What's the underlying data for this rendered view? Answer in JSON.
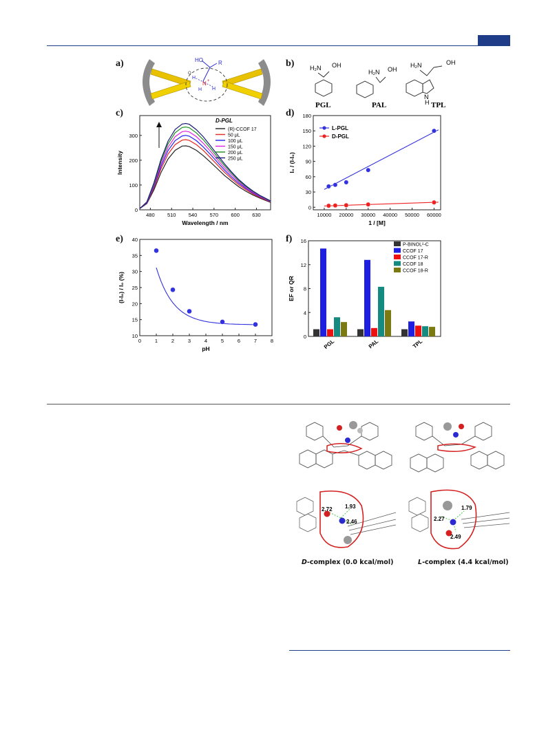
{
  "figure": {
    "panel_a_label": "a)",
    "panel_b_label": "b)",
    "panel_c_label": "c)",
    "panel_d_label": "d)",
    "panel_e_label": "e)",
    "panel_f_label": "f)",
    "scheme_a": {
      "ho": "HO",
      "r": "R",
      "h1": "H",
      "n": "N",
      "plus": "+",
      "h2": "H",
      "h3": "H",
      "o": "O"
    },
    "compounds": [
      {
        "name": "PGL",
        "amine": "H₂N",
        "hydroxyl": "OH"
      },
      {
        "name": "PAL",
        "amine": "H₂N",
        "hydroxyl": "OH"
      },
      {
        "name": "TPL",
        "amine": "H₂N",
        "hydroxyl": "OH",
        "nh": "N",
        "nh_h": "H"
      }
    ]
  },
  "chart_data": [
    {
      "panel": "c",
      "type": "line",
      "xlabel": "Wavelength / nm",
      "ylabel": "Intensity",
      "xlim": [
        465,
        650
      ],
      "ylim": [
        0,
        380
      ],
      "xticks": [
        480,
        510,
        540,
        570,
        600,
        630
      ],
      "yticks": [
        0,
        100,
        200,
        300
      ],
      "legend_title": "D-PGL",
      "legend_position": "top-right",
      "arrow": "up",
      "x": [
        465,
        475,
        485,
        495,
        505,
        515,
        525,
        530,
        535,
        545,
        555,
        565,
        575,
        585,
        595,
        605,
        615,
        625,
        635,
        650
      ],
      "series": [
        {
          "name": "(R)-CCOF 17",
          "color": "#222222",
          "peak": 258,
          "values": [
            5,
            25,
            80,
            150,
            205,
            240,
            257,
            258,
            255,
            240,
            218,
            192,
            165,
            138,
            115,
            93,
            75,
            60,
            47,
            30
          ]
        },
        {
          "name": "50 μL",
          "color": "#e8251f",
          "peak": 283,
          "values": [
            5,
            27,
            88,
            165,
            225,
            263,
            281,
            283,
            280,
            263,
            239,
            210,
            180,
            151,
            125,
            101,
            81,
            64,
            50,
            32
          ]
        },
        {
          "name": "100 μL",
          "color": "#2222ee",
          "peak": 300,
          "values": [
            5,
            28,
            93,
            175,
            239,
            279,
            298,
            300,
            297,
            279,
            253,
            223,
            191,
            160,
            132,
            107,
            86,
            68,
            53,
            33
          ]
        },
        {
          "name": "150 μL",
          "color": "#e020e0",
          "peak": 317,
          "values": [
            5,
            30,
            98,
            185,
            252,
            295,
            315,
            317,
            314,
            295,
            268,
            236,
            202,
            169,
            140,
            113,
            90,
            71,
            55,
            34
          ]
        },
        {
          "name": "200 μL",
          "color": "#1c8c1c",
          "peak": 334,
          "values": [
            5,
            31,
            103,
            195,
            266,
            311,
            332,
            334,
            331,
            310,
            282,
            248,
            212,
            178,
            147,
            118,
            94,
            74,
            57,
            35
          ]
        },
        {
          "name": "250 μL",
          "color": "#1a1a7a",
          "peak": 348,
          "values": [
            5,
            32,
            108,
            203,
            277,
            324,
            346,
            348,
            345,
            323,
            294,
            258,
            221,
            185,
            152,
            122,
            97,
            76,
            58,
            36
          ]
        }
      ]
    },
    {
      "panel": "d",
      "type": "scatter",
      "xlabel": "1 / [M]",
      "ylabel": "I₀ / (I-I₀)",
      "xlim": [
        5000,
        63000
      ],
      "ylim": [
        -5,
        180
      ],
      "xticks": [
        10000,
        20000,
        30000,
        40000,
        50000,
        60000
      ],
      "yticks": [
        0,
        30,
        60,
        90,
        120,
        150,
        180
      ],
      "legend_position": "top-left",
      "series": [
        {
          "name": "L-PGL",
          "color": "#3333dd",
          "x": [
            12000,
            15000,
            20000,
            30000,
            60000
          ],
          "values": [
            41,
            44,
            49,
            73,
            150
          ],
          "fit": [
            [
              10000,
              35
            ],
            [
              62000,
              152
            ]
          ]
        },
        {
          "name": "D-PGL",
          "color": "#ee2222",
          "x": [
            12000,
            15000,
            20000,
            30000,
            60000
          ],
          "values": [
            3,
            3.5,
            4,
            5.5,
            9.5
          ],
          "fit": [
            [
              10000,
              2.5
            ],
            [
              62000,
              10
            ]
          ]
        }
      ]
    },
    {
      "panel": "e",
      "type": "scatter",
      "xlabel": "pH",
      "ylabel": "(I-I₀) / I₀ (%)",
      "xlim": [
        0,
        8
      ],
      "ylim": [
        10,
        40
      ],
      "xticks": [
        0,
        1,
        2,
        3,
        4,
        5,
        6,
        7,
        8
      ],
      "yticks": [
        10,
        15,
        20,
        25,
        30,
        35,
        40
      ],
      "series": [
        {
          "name": "",
          "color": "#3333dd",
          "x": [
            1,
            2,
            3,
            5,
            7
          ],
          "values": [
            36.5,
            24.3,
            17.6,
            14.3,
            13.5
          ]
        }
      ]
    },
    {
      "panel": "f",
      "type": "bar",
      "xlabel": "",
      "ylabel": "EF or QR",
      "ylim": [
        0,
        16
      ],
      "yticks": [
        0,
        4,
        8,
        12,
        16
      ],
      "categories": [
        "PGL",
        "PAL",
        "TPL"
      ],
      "legend_position": "top-right",
      "series": [
        {
          "name": "P-BINOL²-C",
          "color": "#333333",
          "values": [
            1.2,
            1.2,
            1.2
          ]
        },
        {
          "name": "CCOF 17",
          "color": "#1f1fe0",
          "values": [
            14.7,
            12.8,
            2.5
          ]
        },
        {
          "name": "CCOF 17-R",
          "color": "#ee1111",
          "values": [
            1.2,
            1.4,
            1.8
          ]
        },
        {
          "name": "CCOF 18",
          "color": "#148a80",
          "values": [
            3.2,
            8.3,
            1.7
          ]
        },
        {
          "name": "CCOF 18-R",
          "color": "#7a7a10",
          "values": [
            2.4,
            4.4,
            1.6
          ]
        }
      ]
    }
  ],
  "models": {
    "distances_d": [
      "2.72",
      "1.93",
      "2.46"
    ],
    "distances_l": [
      "2.27",
      "1.79",
      "2.49"
    ],
    "caption_d_prefix": "D",
    "caption_d_rest": "-complex (0.0 kcal/mol)",
    "caption_l_prefix": "L",
    "caption_l_rest": "-complex (4.4 kcal/mol)"
  }
}
